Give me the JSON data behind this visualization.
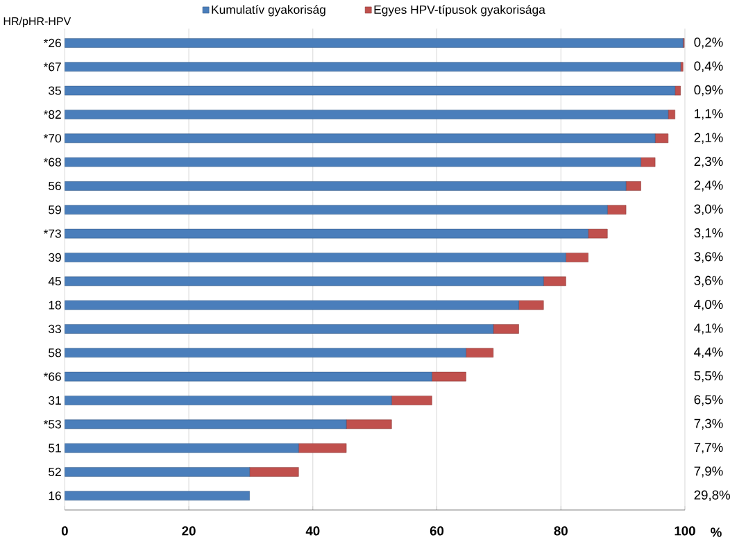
{
  "chart_data": {
    "type": "bar",
    "orientation": "horizontal",
    "stacked": true,
    "ylabel": "HR/pHR-HPV",
    "xlabel": "%",
    "categories": [
      "*26",
      "*67",
      "35",
      "*82",
      "*70",
      "*68",
      "56",
      "59",
      "*73",
      "39",
      "45",
      "18",
      "33",
      "58",
      "*66",
      "31",
      "*53",
      "51",
      "52",
      "16"
    ],
    "series": [
      {
        "name": "Kumulatív gyakoriság",
        "color": "#4a7ebb",
        "values": [
          99.7,
          99.3,
          98.4,
          97.3,
          95.2,
          92.9,
          90.5,
          87.5,
          84.4,
          80.8,
          77.2,
          73.2,
          69.1,
          64.7,
          59.2,
          52.7,
          45.4,
          37.7,
          29.8,
          29.8
        ]
      },
      {
        "name": "Egyes HPV-típusok gyakorisága",
        "color": "#c0504d",
        "values": [
          0.2,
          0.4,
          0.9,
          1.1,
          2.1,
          2.3,
          2.4,
          3.0,
          3.1,
          3.6,
          3.6,
          4.0,
          4.1,
          4.4,
          5.5,
          6.5,
          7.3,
          7.7,
          7.9,
          null
        ],
        "value_labels": [
          "0,2%",
          "0,4%",
          "0,9%",
          "1,1%",
          "2,1%",
          "2,3%",
          "2,4%",
          "3,0%",
          "3,1%",
          "3,6%",
          "3,6%",
          "4,0%",
          "4,1%",
          "4,4%",
          "5,5%",
          "6,5%",
          "7,3%",
          "7,7%",
          "7,9%",
          null
        ]
      }
    ],
    "annotations": [
      "29,8%"
    ],
    "xlim": [
      0,
      100
    ],
    "xticks": [
      0,
      20,
      40,
      60,
      80,
      100
    ],
    "grid": "x",
    "legend": "top"
  }
}
